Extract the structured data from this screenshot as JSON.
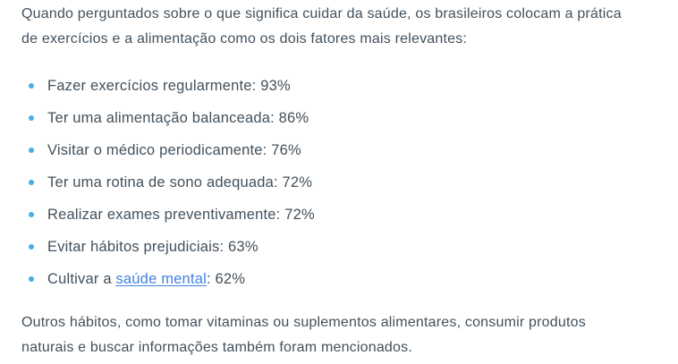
{
  "colors": {
    "text": "#42505c",
    "background": "#ffffff",
    "bullet": "#45aee8",
    "link": "#4282e2"
  },
  "intro_paragraph": [
    "Quando perguntados sobre o que significa cuidar da saúde, os brasileiros colocam a prática",
    "de exercícios e a alimentação como os dois fatores mais relevantes:"
  ],
  "factors_list": {
    "items": [
      {
        "text": "Fazer exercícios regularmente: 93%"
      },
      {
        "text": "Ter uma alimentação balanceada: 86%"
      },
      {
        "text": "Visitar o médico periodicamente: 76%"
      },
      {
        "text": "Ter uma rotina de sono adequada: 72%"
      },
      {
        "text": "Realizar exames preventivamente: 72%"
      },
      {
        "text": "Evitar hábitos prejudiciais: 63%"
      },
      {
        "prefix": "Cultivar a ",
        "link_text": "saúde mental",
        "suffix": ": 62%"
      }
    ]
  },
  "closing_paragraph": [
    "Outros hábitos, como tomar vitaminas ou suplementos alimentares, consumir produtos",
    "naturais e buscar informações também foram mencionados."
  ]
}
